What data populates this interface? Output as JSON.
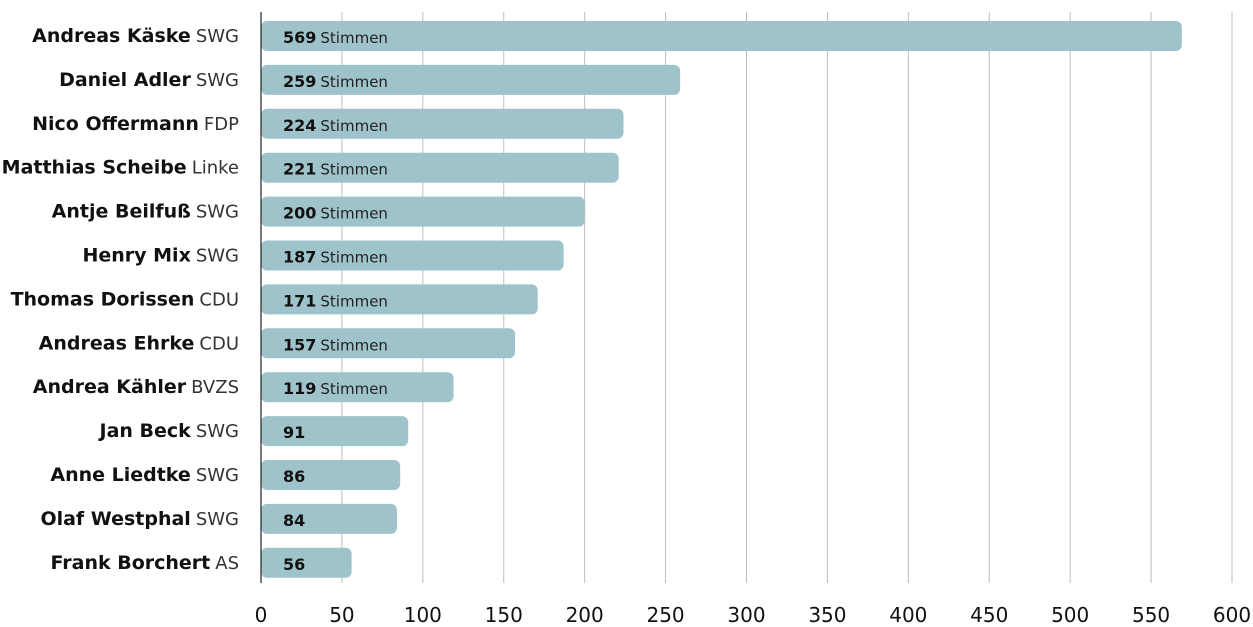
{
  "chart_data": {
    "type": "bar",
    "orientation": "horizontal",
    "title": "",
    "xlabel": "",
    "ylabel": "",
    "xlim": [
      0,
      600
    ],
    "xticks": [
      0,
      50,
      100,
      150,
      200,
      250,
      300,
      350,
      400,
      450,
      500,
      550,
      600
    ],
    "grid": true,
    "unit_label": "Stimmen",
    "categories": [
      {
        "name": "Andreas Käske",
        "party": "SWG",
        "value": 569,
        "show_unit": true
      },
      {
        "name": "Daniel Adler",
        "party": "SWG",
        "value": 259,
        "show_unit": true
      },
      {
        "name": "Nico Offermann",
        "party": "FDP",
        "value": 224,
        "show_unit": true
      },
      {
        "name": "Matthias Scheibe",
        "party": "Linke",
        "value": 221,
        "show_unit": true
      },
      {
        "name": "Antje Beilfuß",
        "party": "SWG",
        "value": 200,
        "show_unit": true
      },
      {
        "name": "Henry Mix",
        "party": "SWG",
        "value": 187,
        "show_unit": true
      },
      {
        "name": "Thomas Dorissen",
        "party": "CDU",
        "value": 171,
        "show_unit": true
      },
      {
        "name": "Andreas Ehrke",
        "party": "CDU",
        "value": 157,
        "show_unit": true
      },
      {
        "name": "Andrea Kähler",
        "party": "BVZS",
        "value": 119,
        "show_unit": true
      },
      {
        "name": "Jan Beck",
        "party": "SWG",
        "value": 91,
        "show_unit": false
      },
      {
        "name": "Anne Liedtke",
        "party": "SWG",
        "value": 86,
        "show_unit": false
      },
      {
        "name": "Olaf Westphal",
        "party": "SWG",
        "value": 84,
        "show_unit": false
      },
      {
        "name": "Frank Borchert",
        "party": "AS",
        "value": 56,
        "show_unit": false
      }
    ],
    "bar_color": "#9fc3ca"
  }
}
